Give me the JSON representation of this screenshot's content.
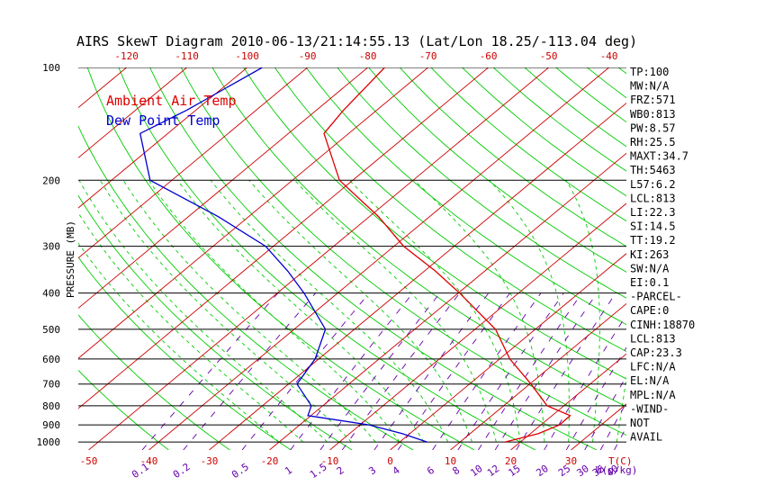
{
  "chart_data": {
    "type": "line",
    "title": "AIRS SkewT Diagram 2010-06-13/21:14:55.13 (Lat/Lon 18.25/-113.04 deg)",
    "ylabel": "PRESSURE (MB)",
    "xlabel": "T(C)",
    "mixing_ratio_label": "W(g/kg)",
    "y_scale": "log",
    "ylim": [
      1050,
      100
    ],
    "pressure_ticks": [
      {
        "value": 100,
        "label": "100"
      },
      {
        "value": 200,
        "label": "200"
      },
      {
        "value": 300,
        "label": "300"
      },
      {
        "value": 400,
        "label": "400"
      },
      {
        "value": 500,
        "label": "500"
      },
      {
        "value": 600,
        "label": "600"
      },
      {
        "value": 700,
        "label": "700"
      },
      {
        "value": 800,
        "label": "800"
      },
      {
        "value": 900,
        "label": "900"
      },
      {
        "value": 1000,
        "label": "1000"
      }
    ],
    "top_temp_ticks": [
      "-120",
      "-110",
      "-100",
      "-90",
      "-80",
      "-70",
      "-60",
      "-50",
      "-40"
    ],
    "bottom_temp_ticks": [
      "-50",
      "-40",
      "-30",
      "-20",
      "-10",
      "0",
      "10",
      "20",
      "30"
    ],
    "mixing_ratio_ticks": [
      "0.1",
      "0.2",
      "0.5",
      "1",
      "1.5",
      "2",
      "3",
      "4",
      "6",
      "8",
      "10",
      "12",
      "15",
      "20",
      "25",
      "30",
      "35",
      "40"
    ],
    "colors": {
      "temperature": "#dd0000",
      "dewpoint": "#0000cc",
      "isotherm": "#cc0000",
      "dry_adiabat": "#00cc00",
      "moist_adiabat": "#00cc00",
      "mixing_ratio": "#6600aa",
      "isobar": "#000000",
      "axis_text_red": "#cc0000",
      "axis_text_purple": "#6600aa"
    },
    "series": [
      {
        "name": "Ambient Air Temp",
        "color": "#dd0000",
        "points": [
          {
            "p": 100,
            "t": -77.2
          },
          {
            "p": 130,
            "t": -75.5
          },
          {
            "p": 150,
            "t": -74.1
          },
          {
            "p": 200,
            "t": -62.2
          },
          {
            "p": 250,
            "t": -48.5
          },
          {
            "p": 300,
            "t": -38.4
          },
          {
            "p": 350,
            "t": -28.1
          },
          {
            "p": 400,
            "t": -19.8
          },
          {
            "p": 500,
            "t": -6.6
          },
          {
            "p": 600,
            "t": 1.7
          },
          {
            "p": 700,
            "t": 10.2
          },
          {
            "p": 800,
            "t": 17.2
          },
          {
            "p": 850,
            "t": 23.0
          },
          {
            "p": 900,
            "t": 23.1
          },
          {
            "p": 950,
            "t": 21.3
          },
          {
            "p": 1000,
            "t": 17.4
          }
        ]
      },
      {
        "name": "Dew Point Temp",
        "color": "#0000cc",
        "points": [
          {
            "p": 100,
            "t": -97.5
          },
          {
            "p": 130,
            "t": -101.5
          },
          {
            "p": 150,
            "t": -104.6
          },
          {
            "p": 200,
            "t": -93.6
          },
          {
            "p": 250,
            "t": -75.1
          },
          {
            "p": 300,
            "t": -61.3
          },
          {
            "p": 350,
            "t": -52.6
          },
          {
            "p": 400,
            "t": -45.6
          },
          {
            "p": 500,
            "t": -34.8
          },
          {
            "p": 600,
            "t": -30.6
          },
          {
            "p": 700,
            "t": -28.6
          },
          {
            "p": 800,
            "t": -21.9
          },
          {
            "p": 850,
            "t": -20.5
          },
          {
            "p": 900,
            "t": -8.5
          },
          {
            "p": 950,
            "t": -1.2
          },
          {
            "p": 1000,
            "t": 4.6
          }
        ]
      }
    ],
    "indices": [
      "TP:100",
      "MW:N/A",
      "FRZ:571",
      "WB0:813",
      "PW:8.57",
      "RH:25.5",
      "MAXT:34.7",
      "TH:5463",
      "L57:6.2",
      "LCL:813",
      "LI:22.3",
      "SI:14.5",
      "TT:19.2",
      "KI:263",
      "SW:N/A",
      "EI:0.1",
      "-PARCEL-",
      "CAPE:0",
      "CINH:18870",
      "LCL:813",
      "CAP:23.3",
      "LFC:N/A",
      "EL:N/A",
      "MPL:N/A",
      "-WIND-",
      "NOT",
      "AVAIL"
    ]
  }
}
